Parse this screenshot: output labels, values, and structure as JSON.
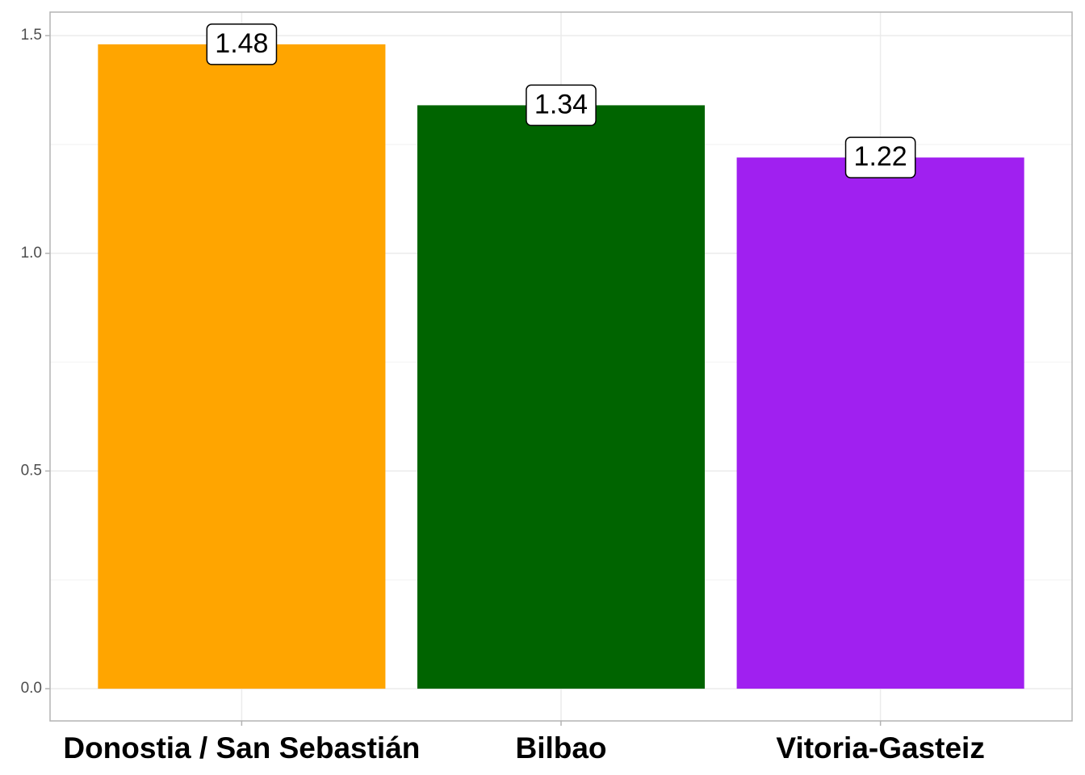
{
  "chart_data": {
    "type": "bar",
    "categories": [
      "Donostia / San Sebastián",
      "Bilbao",
      "Vitoria-Gasteiz"
    ],
    "values": [
      1.48,
      1.34,
      1.22
    ],
    "colors": [
      "#FFA500",
      "#006400",
      "#A020F0"
    ],
    "ylim": [
      -0.074,
      1.554
    ],
    "yticks": [
      {
        "value": 0,
        "label": "0.0"
      },
      0.5,
      {
        "value": 1,
        "label": "1.0"
      },
      1.5
    ],
    "grid": true
  }
}
